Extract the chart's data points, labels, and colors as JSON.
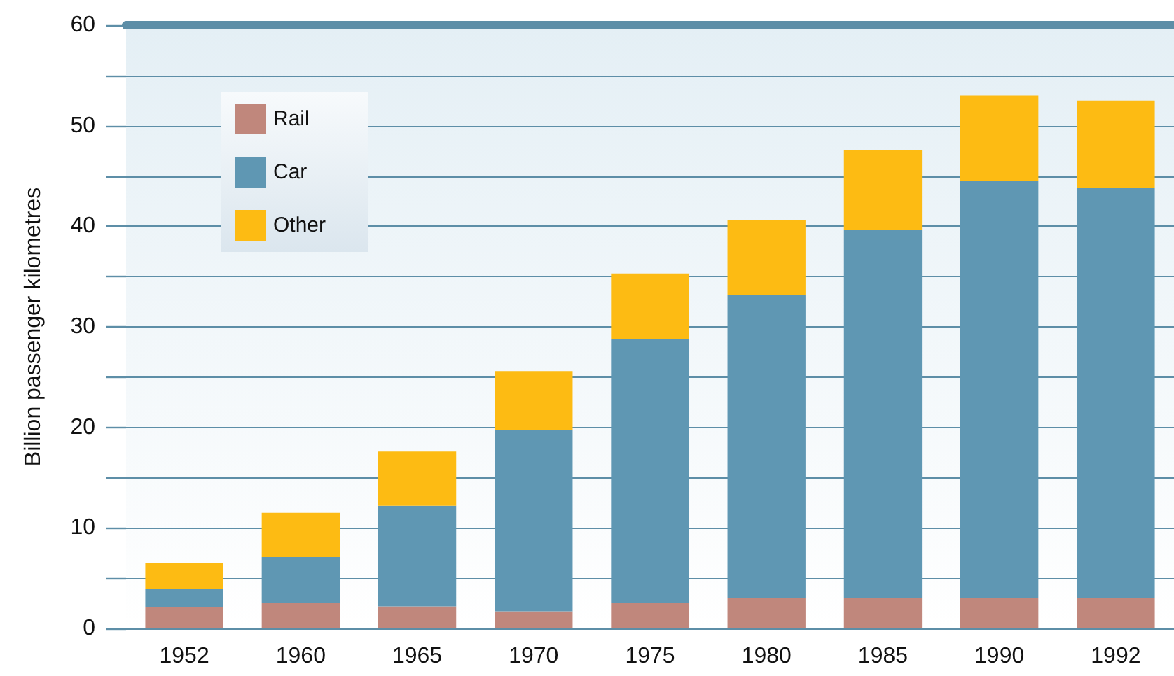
{
  "chart_data": {
    "type": "bar",
    "stacked": true,
    "ylabel": "Billion passenger kilometres",
    "categories": [
      "1952",
      "1960",
      "1965",
      "1970",
      "1975",
      "1980",
      "1985",
      "1990",
      "1992"
    ],
    "series": [
      {
        "name": "Rail",
        "color": "#c0877c",
        "values": [
          2.1,
          2.5,
          2.2,
          1.7,
          2.5,
          3.0,
          3.0,
          3.0,
          3.0
        ]
      },
      {
        "name": "Car",
        "color": "#5f97b3",
        "values": [
          1.8,
          4.6,
          10.0,
          18.0,
          26.3,
          30.2,
          36.6,
          41.5,
          40.8
        ]
      },
      {
        "name": "Other",
        "color": "#fdbb13",
        "values": [
          2.6,
          4.4,
          5.4,
          5.9,
          6.5,
          7.4,
          8.0,
          8.5,
          8.7
        ]
      }
    ],
    "ylim": [
      0,
      60
    ],
    "yticks": [
      0,
      {
        "value": 5,
        "label": null
      },
      10,
      {
        "value": 15,
        "label": null
      },
      20,
      {
        "value": 25,
        "label": null
      },
      30,
      {
        "value": 35,
        "label": null
      },
      40,
      {
        "value": 45,
        "label": null
      },
      50,
      {
        "value": 55,
        "label": null
      },
      60
    ],
    "grid": "y",
    "legend": "top left"
  }
}
